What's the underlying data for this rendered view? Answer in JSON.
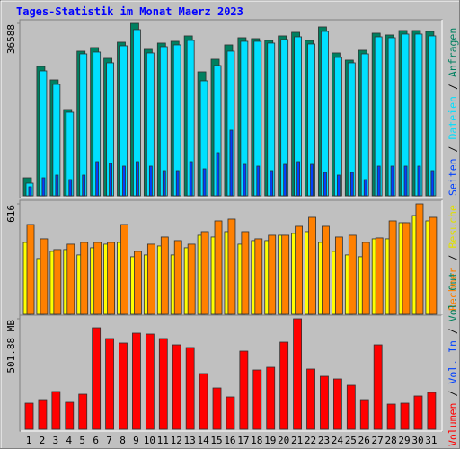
{
  "chart_data": {
    "type": "bar",
    "title": "Tages-Statistik im Monat Maerz 2023",
    "categories": [
      "1",
      "2",
      "3",
      "4",
      "5",
      "6",
      "7",
      "8",
      "9",
      "10",
      "11",
      "12",
      "13",
      "14",
      "15",
      "16",
      "17",
      "18",
      "19",
      "20",
      "21",
      "22",
      "23",
      "24",
      "25",
      "26",
      "27",
      "28",
      "29",
      "30",
      "31"
    ],
    "highlight_categories": [
      "4",
      "5",
      "11",
      "12",
      "18",
      "19",
      "25",
      "26"
    ],
    "highlight_color": "#008040",
    "legend_separator": "/",
    "panels": [
      {
        "ylim": [
          0,
          36588
        ],
        "yticks": [
          36588
        ],
        "series": [
          {
            "name": "Anfragen",
            "color": "#008060",
            "values": [
              3812,
              27446,
              24587,
              18298,
              30687,
              31449,
              29162,
              32593,
              36588,
              31068,
              32402,
              32783,
              33927,
              26303,
              28971,
              32021,
              33546,
              33355,
              32974,
              33927,
              34689,
              32974,
              35833,
              30305,
              28781,
              30877,
              34499,
              34117,
              35070,
              35070,
              34880
            ]
          },
          {
            "name": "Dateien",
            "color": "#00e0ff",
            "values": [
              2668,
              26493,
              23634,
              17726,
              30115,
              30496,
              28209,
              31830,
              35261,
              30305,
              31640,
              32021,
              32974,
              24397,
              27637,
              30687,
              32783,
              32783,
              32402,
              33164,
              33736,
              32211,
              34880,
              29352,
              28209,
              30115,
              33736,
              33546,
              34308,
              34308,
              33927
            ]
          },
          {
            "name": "Seiten",
            "color": "#0040ff",
            "values": [
              1906,
              3812,
              4384,
              3431,
              4384,
              7243,
              6862,
              6290,
              7243,
              6290,
              5337,
              5337,
              7243,
              5718,
              9149,
              13914,
              6671,
              6290,
              5337,
              6671,
              7243,
              6671,
              4956,
              4384,
              4956,
              3431,
              6290,
              6290,
              6290,
              6290,
              5337
            ]
          }
        ]
      },
      {
        "ylim": [
          0,
          616
        ],
        "yticks": [
          616
        ],
        "series": [
          {
            "name": "Besuche",
            "color": "#ffff00",
            "values": [
              401,
              311,
              351,
              361,
              331,
              371,
              391,
              401,
              321,
              331,
              381,
              331,
              371,
              441,
              431,
              461,
              391,
              411,
              411,
              441,
              451,
              461,
              401,
              351,
              331,
              321,
              421,
              421,
              511,
              551,
              521
            ]
          },
          {
            "name": "Rechner",
            "color": "#ff8000",
            "values": [
              501,
              421,
              361,
              391,
              401,
              401,
              401,
              501,
              351,
              391,
              431,
              411,
              391,
              461,
              521,
              531,
              461,
              421,
              441,
              441,
              491,
              541,
              491,
              431,
              441,
              401,
              426,
              521,
              511,
              616,
              541
            ]
          }
        ]
      },
      {
        "ylim": [
          0,
          501.88
        ],
        "yticks": [
          {
            "value": 501.88,
            "label": "501.88 MB"
          }
        ],
        "series": [
          {
            "name": "Volumen",
            "color": "#ff0000",
            "values": [
              118.3,
              134.6,
              171.4,
              122.4,
              159.1,
              461.0,
              412.1,
              391.7,
              436.6,
              432.5,
              412.1,
              383.5,
              371.3,
              253.0,
              187.7,
              146.9,
              355.0,
              269.3,
              281.5,
              395.8,
              501.88,
              273.4,
              240.7,
              228.5,
              199.9,
              134.6,
              383.5,
              114.2,
              118.3,
              151.0,
              167.3
            ]
          }
        ],
        "legend_only": [
          {
            "name": "Vol. In",
            "color": "#0040ff"
          },
          {
            "name": "Vol. Out",
            "color": "#00805c"
          }
        ]
      }
    ]
  }
}
